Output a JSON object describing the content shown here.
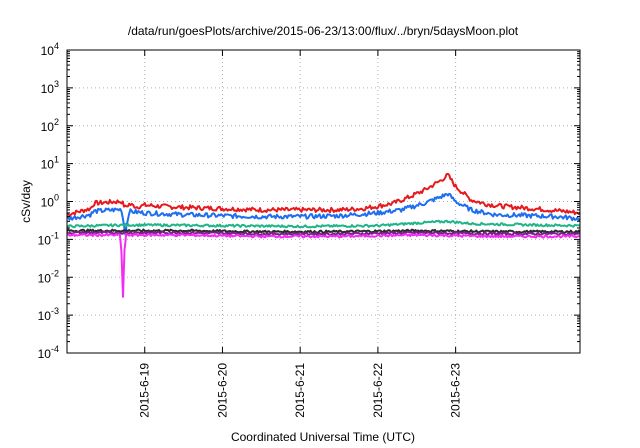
{
  "chart_data": {
    "type": "line",
    "title": "/data/run/goesPlots/archive/2015-06-23/13:00/flux/../bryn/5daysMoon.plot",
    "xlabel": "Coordinated Universal Time (UTC)",
    "ylabel": "cSv/day",
    "yscale": "log",
    "ylim": [
      0.0001,
      10000
    ],
    "xlim": [
      0,
      6.6
    ],
    "x_units": "days after 2015-06-18 00:00 UTC",
    "x_ticks": [
      {
        "x": 1,
        "label": "2015-6-19"
      },
      {
        "x": 2,
        "label": "2015-6-20"
      },
      {
        "x": 3,
        "label": "2015-6-21"
      },
      {
        "x": 4,
        "label": "2015-6-22"
      },
      {
        "x": 5,
        "label": "2015-6-23"
      }
    ],
    "y_ticks": [
      {
        "v": 0.0001,
        "base": "10",
        "exp": "-4"
      },
      {
        "v": 0.001,
        "base": "10",
        "exp": "-3"
      },
      {
        "v": 0.01,
        "base": "10",
        "exp": "-2"
      },
      {
        "v": 0.1,
        "base": "10",
        "exp": "-1"
      },
      {
        "v": 1,
        "base": "10",
        "exp": "0"
      },
      {
        "v": 10,
        "base": "10",
        "exp": "1"
      },
      {
        "v": 100,
        "base": "10",
        "exp": "2"
      },
      {
        "v": 1000,
        "base": "10",
        "exp": "3"
      },
      {
        "v": 10000,
        "base": "10",
        "exp": "4"
      }
    ],
    "grid": true,
    "series": [
      {
        "color": "#e8191c",
        "points": [
          [
            0,
            0.45
          ],
          [
            0.3,
            0.65
          ],
          [
            0.35,
            0.9
          ],
          [
            0.6,
            0.98
          ],
          [
            0.7,
            1.0
          ],
          [
            0.75,
            0.7
          ],
          [
            0.8,
            0.85
          ],
          [
            0.9,
            0.72
          ],
          [
            1.0,
            0.8
          ],
          [
            1.2,
            0.75
          ],
          [
            1.5,
            0.7
          ],
          [
            2.0,
            0.65
          ],
          [
            2.5,
            0.6
          ],
          [
            3.0,
            0.6
          ],
          [
            3.5,
            0.6
          ],
          [
            3.8,
            0.65
          ],
          [
            4.0,
            0.75
          ],
          [
            4.2,
            0.9
          ],
          [
            4.4,
            1.3
          ],
          [
            4.6,
            2.0
          ],
          [
            4.8,
            3.5
          ],
          [
            4.9,
            5.0
          ],
          [
            5.0,
            2.5
          ],
          [
            5.2,
            1.1
          ],
          [
            5.4,
            0.85
          ],
          [
            5.6,
            0.75
          ],
          [
            5.8,
            0.7
          ],
          [
            6.0,
            0.65
          ],
          [
            6.2,
            0.6
          ],
          [
            6.4,
            0.55
          ],
          [
            6.6,
            0.5
          ]
        ]
      },
      {
        "color": "#1e6ef0",
        "points": [
          [
            0,
            0.35
          ],
          [
            0.3,
            0.45
          ],
          [
            0.35,
            0.55
          ],
          [
            0.7,
            0.62
          ],
          [
            0.75,
            0.15
          ],
          [
            0.8,
            0.55
          ],
          [
            1.0,
            0.5
          ],
          [
            1.5,
            0.45
          ],
          [
            2.0,
            0.42
          ],
          [
            2.5,
            0.4
          ],
          [
            3.0,
            0.4
          ],
          [
            3.5,
            0.42
          ],
          [
            4.0,
            0.5
          ],
          [
            4.3,
            0.6
          ],
          [
            4.6,
            0.9
          ],
          [
            4.8,
            1.3
          ],
          [
            4.9,
            1.6
          ],
          [
            5.0,
            1.0
          ],
          [
            5.2,
            0.6
          ],
          [
            5.5,
            0.45
          ],
          [
            6.0,
            0.42
          ],
          [
            6.3,
            0.4
          ],
          [
            6.6,
            0.35
          ]
        ]
      },
      {
        "color": "#1fb589",
        "points": [
          [
            0,
            0.22
          ],
          [
            0.75,
            0.24
          ],
          [
            1.0,
            0.24
          ],
          [
            2.0,
            0.23
          ],
          [
            3.0,
            0.22
          ],
          [
            4.0,
            0.23
          ],
          [
            4.5,
            0.27
          ],
          [
            4.9,
            0.3
          ],
          [
            5.2,
            0.26
          ],
          [
            6.0,
            0.24
          ],
          [
            6.6,
            0.23
          ]
        ]
      },
      {
        "color": "#2a2a2a",
        "points": [
          [
            0,
            0.17
          ],
          [
            0.75,
            0.17
          ],
          [
            1.5,
            0.17
          ],
          [
            2.5,
            0.16
          ],
          [
            3.5,
            0.16
          ],
          [
            4.5,
            0.17
          ],
          [
            5.5,
            0.16
          ],
          [
            6.6,
            0.16
          ]
        ]
      },
      {
        "color": "#7a1f8c",
        "points": [
          [
            0,
            0.15
          ],
          [
            0.75,
            0.15
          ],
          [
            1.5,
            0.15
          ],
          [
            2.5,
            0.14
          ],
          [
            3.5,
            0.14
          ],
          [
            4.5,
            0.15
          ],
          [
            5.5,
            0.14
          ],
          [
            6.6,
            0.14
          ]
        ]
      },
      {
        "color": "#f22cf2",
        "points": [
          [
            0,
            0.13
          ],
          [
            0.68,
            0.13
          ],
          [
            0.7,
            0.05
          ],
          [
            0.72,
            0.003
          ],
          [
            0.74,
            0.05
          ],
          [
            0.76,
            0.13
          ],
          [
            1.5,
            0.13
          ],
          [
            2.5,
            0.12
          ],
          [
            3.5,
            0.12
          ],
          [
            4.5,
            0.13
          ],
          [
            5.5,
            0.12
          ],
          [
            6.6,
            0.12
          ]
        ]
      }
    ]
  }
}
